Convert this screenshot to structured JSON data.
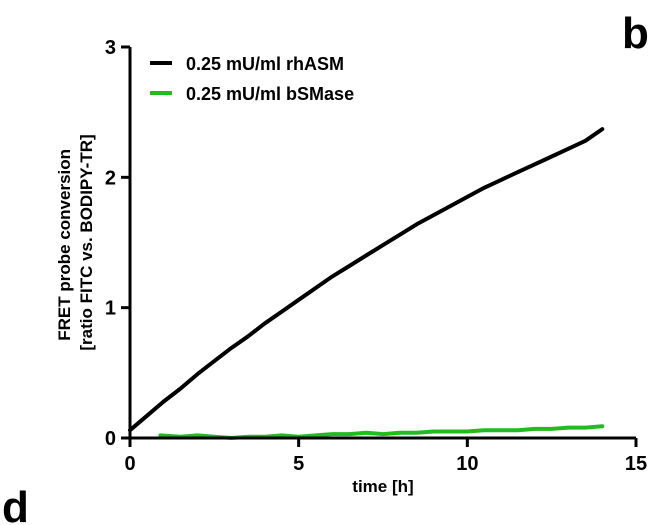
{
  "panel_letters": {
    "top_right": "b",
    "bottom_left": "d"
  },
  "chart_data": {
    "type": "line",
    "title": "",
    "xlabel": "time [h]",
    "ylabel_lines": [
      "FRET probe conversion",
      "[ratio FITC vs. BODIPY-TR]"
    ],
    "xlim": [
      0,
      15
    ],
    "ylim": [
      0,
      3
    ],
    "x_ticks": [
      0,
      5,
      10,
      15
    ],
    "x_tick_labels": [
      "0",
      "5",
      "10",
      "15"
    ],
    "y_ticks": [
      0,
      1,
      2,
      3
    ],
    "y_tick_labels": [
      "0",
      "1",
      "2",
      "3"
    ],
    "grid": false,
    "legend_position": "top-left",
    "series": [
      {
        "name": "0.25 mU/ml rhASM",
        "color": "#000000",
        "x": [
          0,
          0.5,
          1,
          1.5,
          2,
          2.5,
          3,
          3.5,
          4,
          4.5,
          5,
          5.5,
          6,
          6.5,
          7,
          7.5,
          8,
          8.5,
          9,
          9.5,
          10,
          10.5,
          11,
          11.5,
          12,
          12.5,
          13,
          13.5,
          14
        ],
        "y": [
          0.06,
          0.17,
          0.28,
          0.38,
          0.49,
          0.59,
          0.69,
          0.78,
          0.88,
          0.97,
          1.06,
          1.15,
          1.24,
          1.32,
          1.4,
          1.48,
          1.56,
          1.64,
          1.71,
          1.78,
          1.85,
          1.92,
          1.98,
          2.04,
          2.1,
          2.16,
          2.22,
          2.28,
          2.37
        ]
      },
      {
        "name": "0.25 mU/ml bSMase",
        "color": "#22bb22",
        "x": [
          0.9,
          1.5,
          2,
          2.5,
          3,
          3.5,
          4,
          4.5,
          5,
          5.5,
          6,
          6.5,
          7,
          7.5,
          8,
          8.5,
          9,
          9.5,
          10,
          10.5,
          11,
          11.5,
          12,
          12.5,
          13,
          13.5,
          14
        ],
        "y": [
          0.02,
          0.01,
          0.02,
          0.01,
          0.0,
          0.01,
          0.01,
          0.02,
          0.01,
          0.02,
          0.03,
          0.03,
          0.04,
          0.03,
          0.04,
          0.04,
          0.05,
          0.05,
          0.05,
          0.06,
          0.06,
          0.06,
          0.07,
          0.07,
          0.08,
          0.08,
          0.09
        ]
      }
    ]
  }
}
